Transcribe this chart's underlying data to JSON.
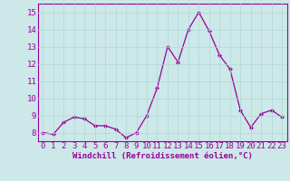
{
  "x": [
    0,
    1,
    2,
    3,
    4,
    5,
    6,
    7,
    8,
    9,
    10,
    11,
    12,
    13,
    14,
    15,
    16,
    17,
    18,
    19,
    20,
    21,
    22,
    23
  ],
  "y": [
    8.0,
    7.9,
    8.6,
    8.9,
    8.8,
    8.4,
    8.4,
    8.2,
    7.7,
    8.0,
    9.0,
    10.6,
    13.0,
    12.1,
    14.0,
    15.0,
    13.9,
    12.5,
    11.7,
    9.3,
    8.3,
    9.1,
    9.3,
    8.9
  ],
  "line_color": "#990099",
  "marker": "D",
  "marker_size": 2.0,
  "line_width": 0.9,
  "xlabel": "Windchill (Refroidissement éolien,°C)",
  "xlabel_fontsize": 6.5,
  "xlim": [
    -0.5,
    23.5
  ],
  "ylim": [
    7.5,
    15.5
  ],
  "yticks": [
    8,
    9,
    10,
    11,
    12,
    13,
    14,
    15
  ],
  "xticks": [
    0,
    1,
    2,
    3,
    4,
    5,
    6,
    7,
    8,
    9,
    10,
    11,
    12,
    13,
    14,
    15,
    16,
    17,
    18,
    19,
    20,
    21,
    22,
    23
  ],
  "grid_color": "#b0d8d8",
  "background_color": "#cce8e8",
  "tick_label_fontsize": 6.5,
  "tick_color": "#990099",
  "axes_edge_color": "#990099"
}
